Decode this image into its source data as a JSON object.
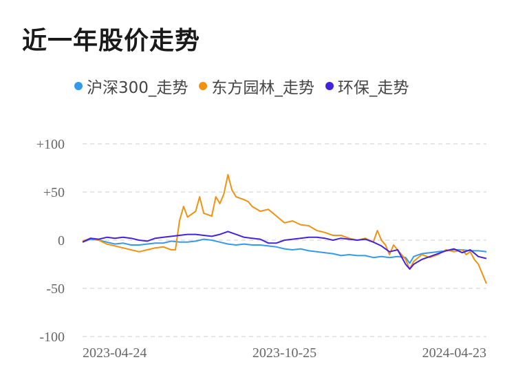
{
  "chart_data": {
    "type": "line",
    "title": "近一年股价走势",
    "ylim": [
      -100,
      100
    ],
    "yticks": [
      "+100",
      "+50",
      "0",
      "-50",
      "-100"
    ],
    "ytick_values": [
      100,
      50,
      0,
      -50,
      -100
    ],
    "xtick_labels": [
      "2023-04-24",
      "2023-10-25",
      "2024-04-23"
    ],
    "x_range": [
      0,
      100
    ],
    "xtick_positions": [
      0,
      50,
      100
    ],
    "series": [
      {
        "name": "沪深300_走势",
        "color": "#3399ee",
        "points": [
          [
            0,
            -2
          ],
          [
            2,
            1
          ],
          [
            4,
            0
          ],
          [
            6,
            -2
          ],
          [
            8,
            -4
          ],
          [
            10,
            -3
          ],
          [
            12,
            -5
          ],
          [
            14,
            -5
          ],
          [
            16,
            -4
          ],
          [
            18,
            -3
          ],
          [
            20,
            -3
          ],
          [
            22,
            -1
          ],
          [
            24,
            -2
          ],
          [
            26,
            -2
          ],
          [
            28,
            -1
          ],
          [
            30,
            1
          ],
          [
            32,
            0
          ],
          [
            34,
            -2
          ],
          [
            36,
            -4
          ],
          [
            38,
            -5
          ],
          [
            40,
            -4
          ],
          [
            42,
            -5
          ],
          [
            44,
            -5
          ],
          [
            46,
            -6
          ],
          [
            48,
            -7
          ],
          [
            50,
            -9
          ],
          [
            52,
            -10
          ],
          [
            54,
            -9
          ],
          [
            56,
            -11
          ],
          [
            58,
            -12
          ],
          [
            60,
            -13
          ],
          [
            62,
            -14
          ],
          [
            64,
            -16
          ],
          [
            66,
            -15
          ],
          [
            68,
            -16
          ],
          [
            70,
            -16
          ],
          [
            72,
            -18
          ],
          [
            74,
            -17
          ],
          [
            76,
            -18
          ],
          [
            78,
            -17
          ],
          [
            80,
            -18
          ],
          [
            81,
            -24
          ],
          [
            82,
            -17
          ],
          [
            84,
            -14
          ],
          [
            86,
            -13
          ],
          [
            88,
            -12
          ],
          [
            90,
            -11
          ],
          [
            92,
            -10
          ],
          [
            94,
            -10
          ],
          [
            96,
            -11
          ],
          [
            98,
            -11
          ],
          [
            100,
            -12
          ]
        ]
      },
      {
        "name": "东方园林_走势",
        "color": "#f0920f",
        "points": [
          [
            0,
            -1
          ],
          [
            2,
            2
          ],
          [
            4,
            0
          ],
          [
            6,
            -4
          ],
          [
            8,
            -6
          ],
          [
            10,
            -8
          ],
          [
            12,
            -10
          ],
          [
            14,
            -12
          ],
          [
            16,
            -10
          ],
          [
            18,
            -8
          ],
          [
            20,
            -7
          ],
          [
            22,
            -10
          ],
          [
            23,
            -10
          ],
          [
            24,
            20
          ],
          [
            25,
            35
          ],
          [
            26,
            24
          ],
          [
            28,
            30
          ],
          [
            29,
            45
          ],
          [
            30,
            28
          ],
          [
            32,
            25
          ],
          [
            33,
            45
          ],
          [
            34,
            38
          ],
          [
            35,
            48
          ],
          [
            36,
            68
          ],
          [
            37,
            52
          ],
          [
            38,
            45
          ],
          [
            40,
            42
          ],
          [
            41,
            40
          ],
          [
            42,
            35
          ],
          [
            44,
            30
          ],
          [
            46,
            32
          ],
          [
            48,
            25
          ],
          [
            50,
            18
          ],
          [
            52,
            20
          ],
          [
            54,
            16
          ],
          [
            56,
            15
          ],
          [
            58,
            10
          ],
          [
            60,
            8
          ],
          [
            62,
            5
          ],
          [
            64,
            5
          ],
          [
            66,
            2
          ],
          [
            68,
            0
          ],
          [
            70,
            2
          ],
          [
            72,
            -2
          ],
          [
            73,
            10
          ],
          [
            74,
            0
          ],
          [
            75,
            -5
          ],
          [
            76,
            -15
          ],
          [
            77,
            -5
          ],
          [
            78,
            -10
          ],
          [
            80,
            -20
          ],
          [
            81,
            -30
          ],
          [
            82,
            -22
          ],
          [
            84,
            -15
          ],
          [
            86,
            -18
          ],
          [
            88,
            -15
          ],
          [
            90,
            -10
          ],
          [
            92,
            -12
          ],
          [
            94,
            -10
          ],
          [
            95,
            -15
          ],
          [
            96,
            -12
          ],
          [
            97,
            -20
          ],
          [
            98,
            -25
          ],
          [
            99,
            -35
          ],
          [
            100,
            -45
          ]
        ]
      },
      {
        "name": "环保_走势",
        "color": "#4422dd",
        "points": [
          [
            0,
            -2
          ],
          [
            2,
            2
          ],
          [
            4,
            1
          ],
          [
            6,
            3
          ],
          [
            8,
            2
          ],
          [
            10,
            3
          ],
          [
            12,
            2
          ],
          [
            14,
            0
          ],
          [
            16,
            -1
          ],
          [
            18,
            2
          ],
          [
            20,
            3
          ],
          [
            22,
            4
          ],
          [
            24,
            5
          ],
          [
            26,
            6
          ],
          [
            28,
            6
          ],
          [
            30,
            5
          ],
          [
            32,
            4
          ],
          [
            34,
            6
          ],
          [
            36,
            9
          ],
          [
            38,
            6
          ],
          [
            40,
            3
          ],
          [
            42,
            2
          ],
          [
            44,
            1
          ],
          [
            46,
            -3
          ],
          [
            48,
            -3
          ],
          [
            50,
            0
          ],
          [
            52,
            1
          ],
          [
            54,
            2
          ],
          [
            56,
            3
          ],
          [
            58,
            3
          ],
          [
            60,
            2
          ],
          [
            62,
            0
          ],
          [
            64,
            2
          ],
          [
            66,
            1
          ],
          [
            68,
            0
          ],
          [
            70,
            1
          ],
          [
            72,
            -2
          ],
          [
            74,
            -6
          ],
          [
            76,
            -12
          ],
          [
            78,
            -10
          ],
          [
            80,
            -25
          ],
          [
            81,
            -30
          ],
          [
            82,
            -25
          ],
          [
            84,
            -20
          ],
          [
            86,
            -17
          ],
          [
            88,
            -14
          ],
          [
            90,
            -11
          ],
          [
            92,
            -9
          ],
          [
            94,
            -13
          ],
          [
            96,
            -10
          ],
          [
            98,
            -17
          ],
          [
            100,
            -19
          ]
        ]
      }
    ]
  }
}
